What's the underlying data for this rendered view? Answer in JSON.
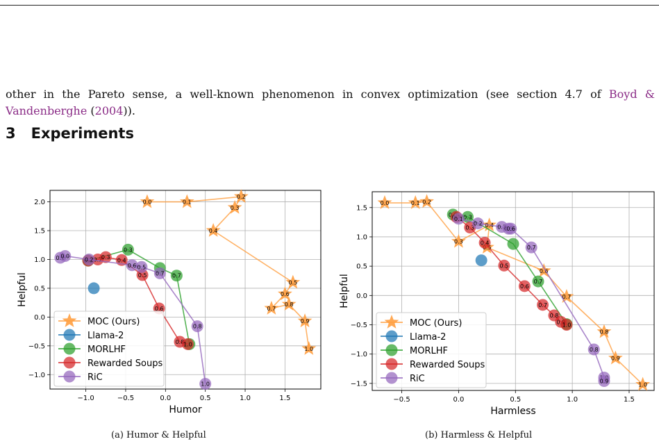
{
  "paragraph": {
    "text": "other in the Pareto sense, a well-known phenomenon in convex optimization (see section 4.7 of ",
    "cite1": "Boyd & Vandenberghe",
    "mid": " (",
    "cite2": "2004",
    "end": "))."
  },
  "section": {
    "number": "3",
    "title": "Experiments"
  },
  "captions": {
    "a": "(a) Humor & Helpful",
    "b": "(b) Harmless & Helpful"
  },
  "colors": {
    "moc": "#ff9f40",
    "llama": "#1f77b4",
    "morlhf": "#2ca02c",
    "rs": "#d62728",
    "ric": "#9467bd"
  },
  "chart_data": [
    {
      "type": "scatter",
      "xlabel": "Humor",
      "ylabel": "Helpful",
      "xlim": [
        -1.45,
        1.95
      ],
      "ylim": [
        -1.25,
        2.2
      ],
      "xticks": [
        -1.0,
        -0.5,
        0.0,
        0.5,
        1.0,
        1.5
      ],
      "xtick_labels": [
        "−1.0",
        "−0.5",
        "0.0",
        "0.5",
        "1.0",
        "1.5"
      ],
      "yticks": [
        -1.0,
        -0.5,
        0.0,
        0.5,
        1.0,
        1.5,
        2.0
      ],
      "ytick_labels": [
        "−1.0",
        "−0.5",
        "0.0",
        "0.5",
        "1.0",
        "1.5",
        "2.0"
      ],
      "grid": true,
      "legend": "lower-left",
      "series": [
        {
          "name": "MOC (Ours)",
          "marker": "star",
          "color": "#ff9f40",
          "points": [
            [
              -0.23,
              2.0
            ],
            [
              0.27,
              2.0
            ],
            [
              0.95,
              2.09
            ],
            [
              0.87,
              1.9
            ],
            [
              0.6,
              1.5
            ],
            [
              1.6,
              0.6
            ],
            [
              1.5,
              0.4
            ],
            [
              1.33,
              0.15
            ],
            [
              1.55,
              0.22
            ],
            [
              1.75,
              -0.07
            ],
            [
              1.8,
              -0.55
            ]
          ],
          "labels": [
            "0.0",
            "0.1",
            "0.2",
            "0.3",
            "0.4",
            "0.5",
            "0.6",
            "0.7",
            "0.8",
            "0.9",
            "1.0"
          ]
        },
        {
          "name": "Llama-2",
          "marker": "circle",
          "color": "#1f77b4",
          "points": [
            [
              -0.9,
              0.5
            ]
          ],
          "labels": [
            ""
          ]
        },
        {
          "name": "MORLHF",
          "marker": "circle",
          "color": "#2ca02c",
          "points": [
            [
              -0.97,
              0.98
            ],
            [
              -0.47,
              1.17
            ],
            [
              -0.07,
              0.85
            ],
            [
              0.14,
              0.72
            ],
            [
              0.3,
              -0.47
            ]
          ],
          "labels": [
            "0.0",
            "0.3",
            "",
            "0.7",
            ""
          ]
        },
        {
          "name": "Rewarded Soups",
          "marker": "circle",
          "color": "#d62728",
          "points": [
            [
              -0.97,
              0.98
            ],
            [
              -0.85,
              1.0
            ],
            [
              -0.75,
              1.04
            ],
            [
              -0.55,
              0.99
            ],
            [
              -0.29,
              0.73
            ],
            [
              -0.08,
              0.15
            ],
            [
              0.18,
              -0.43
            ],
            [
              0.28,
              -0.47
            ]
          ],
          "labels": [
            "0.1",
            "0.2",
            "0.3",
            "0.4",
            "0.5",
            "0.6",
            "0.8",
            "1.0"
          ]
        },
        {
          "name": "RiC",
          "marker": "circle",
          "color": "#9467bd",
          "points": [
            [
              -1.32,
              1.03
            ],
            [
              -1.26,
              1.06
            ],
            [
              -0.96,
              1.0
            ],
            [
              -0.42,
              0.9
            ],
            [
              -0.3,
              0.87
            ],
            [
              -0.07,
              0.76
            ],
            [
              0.4,
              -0.16
            ],
            [
              0.5,
              -1.16
            ]
          ],
          "labels": [
            "0.1",
            "0.0",
            "0.2",
            "0.6",
            "0.5",
            "0.7",
            "0.8",
            "1.0"
          ]
        }
      ]
    },
    {
      "type": "scatter",
      "xlabel": "Harmless",
      "ylabel": "Helpful",
      "xlim": [
        -0.76,
        1.72
      ],
      "ylim": [
        -1.62,
        1.77
      ],
      "xticks": [
        -0.5,
        0.0,
        0.5,
        1.0,
        1.5
      ],
      "xtick_labels": [
        "−0.5",
        "0.0",
        "0.5",
        "1.0",
        "1.5"
      ],
      "yticks": [
        -1.5,
        -1.0,
        -0.5,
        0.0,
        0.5,
        1.0,
        1.5
      ],
      "ytick_labels": [
        "−1.5",
        "−1.0",
        "−0.5",
        "0.0",
        "0.5",
        "1.0",
        "1.5"
      ],
      "grid": true,
      "legend": "lower-left",
      "series": [
        {
          "name": "MOC (Ours)",
          "marker": "star",
          "color": "#ff9f40",
          "points": [
            [
              -0.65,
              1.58
            ],
            [
              -0.38,
              1.58
            ],
            [
              -0.28,
              1.6
            ],
            [
              0.0,
              0.92
            ],
            [
              0.27,
              1.2
            ],
            [
              0.25,
              0.82
            ],
            [
              0.75,
              0.42
            ],
            [
              0.95,
              -0.02
            ],
            [
              1.28,
              -0.62
            ],
            [
              1.38,
              -1.07
            ],
            [
              1.62,
              -1.52
            ]
          ],
          "labels": [
            "0.0",
            "0.1",
            "0.2",
            "0.3",
            "0.4",
            "0.5",
            "0.6",
            "0.7",
            "0.8",
            "0.9",
            "1.0"
          ]
        },
        {
          "name": "Llama-2",
          "marker": "circle",
          "color": "#1f77b4",
          "points": [
            [
              0.2,
              0.6
            ]
          ],
          "labels": [
            ""
          ]
        },
        {
          "name": "MORLHF",
          "marker": "circle",
          "color": "#2ca02c",
          "points": [
            [
              -0.05,
              1.38
            ],
            [
              0.08,
              1.34
            ],
            [
              0.48,
              0.88
            ],
            [
              0.7,
              0.24
            ],
            [
              0.95,
              -0.49
            ]
          ],
          "labels": [
            "0.0",
            "0.3",
            "",
            "0.7",
            ""
          ]
        },
        {
          "name": "Rewarded Soups",
          "marker": "circle",
          "color": "#d62728",
          "points": [
            [
              -0.02,
              1.34
            ],
            [
              0.1,
              1.16
            ],
            [
              0.23,
              0.9
            ],
            [
              0.4,
              0.51
            ],
            [
              0.58,
              0.16
            ],
            [
              0.74,
              -0.16
            ],
            [
              0.84,
              -0.34
            ],
            [
              0.9,
              -0.45
            ],
            [
              0.95,
              -0.5
            ]
          ],
          "labels": [
            "0.1",
            "0.3",
            "0.4",
            "0.5",
            "0.6",
            "0.7",
            "0.8",
            "0.9",
            "1.0"
          ]
        },
        {
          "name": "RiC",
          "marker": "circle",
          "color": "#9467bd",
          "points": [
            [
              0.0,
              1.31
            ],
            [
              0.17,
              1.23
            ],
            [
              0.38,
              1.17
            ],
            [
              0.44,
              1.14
            ],
            [
              0.46,
              1.14
            ],
            [
              0.64,
              0.82
            ],
            [
              1.19,
              -0.92
            ],
            [
              1.28,
              -1.4
            ],
            [
              1.28,
              -1.46
            ]
          ],
          "labels": [
            "0.1",
            "0.2",
            "0.3",
            "0.5",
            "0.6",
            "0.7",
            "0.8",
            "1.0",
            "0.9"
          ]
        }
      ]
    }
  ]
}
